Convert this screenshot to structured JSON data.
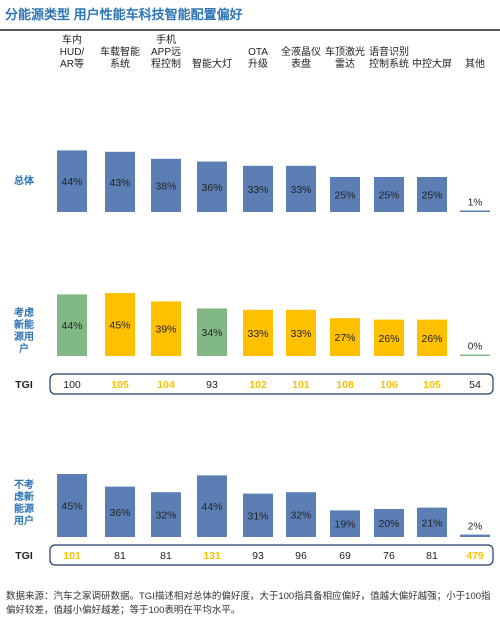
{
  "title": "分能源类型 用户性能车科技智能配置偏好",
  "footnote": "数据来源：汽车之家调研数据。TGI描述相对总体的偏好度，大于100指具备相应偏好，值越大偏好越强；小于100指偏好较差，值越小偏好越差；等于100表明在平均水平。",
  "colors": {
    "blue": "#5b7fb5",
    "green": "#81b883",
    "yellow": "#ffc000",
    "title": "#2e75b6",
    "label_blue": "#2e75b6",
    "tgi_border": "#1f3b6b"
  },
  "chart_data": {
    "type": "bar",
    "categories": [
      "车内HUD/AR等",
      "车载智能系统",
      "手机APP远程控制",
      "智能大灯",
      "OTA升级",
      "全液晶仪表盘",
      "车顶激光雷达",
      "语音识别控制系统",
      "中控大屏",
      "其他"
    ],
    "category_lines": [
      [
        "车内",
        "HUD/",
        "AR等"
      ],
      [
        "车载智能",
        "系统"
      ],
      [
        "手机",
        "APP远",
        "程控制"
      ],
      [
        "智能大灯"
      ],
      [
        "OTA",
        "升级"
      ],
      [
        "全液晶仪",
        "表盘"
      ],
      [
        "车顶激光",
        "雷达"
      ],
      [
        "语音识别",
        "控制系统"
      ],
      [
        "中控大屏"
      ],
      [
        "其他"
      ]
    ],
    "series": [
      {
        "name": "总体",
        "name_lines": [
          "总体"
        ],
        "values": [
          44,
          43,
          38,
          36,
          33,
          33,
          25,
          25,
          25,
          1
        ],
        "labels": [
          "44%",
          "43%",
          "38%",
          "36%",
          "33%",
          "33%",
          "25%",
          "25%",
          "25%",
          "1%"
        ]
      },
      {
        "name": "考虑新能源用户",
        "name_lines": [
          "考虑",
          "新能",
          "源用",
          "户"
        ],
        "values": [
          44,
          45,
          39,
          34,
          33,
          33,
          27,
          26,
          26,
          0
        ],
        "labels": [
          "44%",
          "45%",
          "39%",
          "34%",
          "33%",
          "33%",
          "27%",
          "26%",
          "26%",
          "0%"
        ],
        "tgi_label": "TGI",
        "tgi": [
          100,
          105,
          104,
          93,
          102,
          101,
          108,
          106,
          105,
          54
        ]
      },
      {
        "name": "不考虑新能源用户",
        "name_lines": [
          "不考",
          "虑新",
          "能源",
          "用户"
        ],
        "values": [
          45,
          36,
          32,
          44,
          31,
          32,
          19,
          20,
          21,
          2
        ],
        "labels": [
          "45%",
          "36%",
          "32%",
          "44%",
          "31%",
          "32%",
          "19%",
          "20%",
          "21%",
          "2%"
        ],
        "tgi_label": "TGI",
        "tgi": [
          101,
          81,
          81,
          131,
          93,
          96,
          69,
          76,
          81,
          479
        ]
      }
    ],
    "ylim": [
      0,
      50
    ],
    "grid": false,
    "legend": "none",
    "tgi_highlight_rule": "TGI > 100 shown in yellow"
  }
}
